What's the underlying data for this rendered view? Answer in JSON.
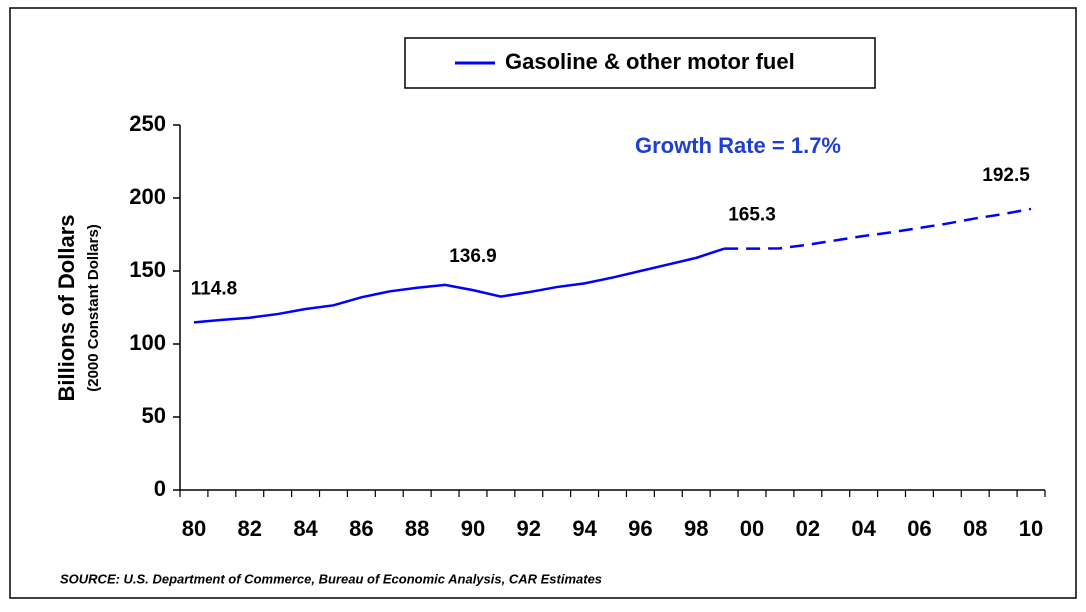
{
  "chart_data": {
    "type": "line",
    "ylabel": "Billions of Dollars",
    "ylabel_sub": "(2000 Constant Dollars)",
    "annotation": "Growth Rate = 1.7%",
    "source": "SOURCE:  U.S. Department of Commerce, Bureau of Economic Analysis, CAR Estimates",
    "categories": [
      "80",
      null,
      "82",
      null,
      "84",
      null,
      "86",
      null,
      "88",
      null,
      "90",
      null,
      "92",
      null,
      "94",
      null,
      "96",
      null,
      "98",
      null,
      "00",
      null,
      "02",
      null,
      "04",
      null,
      "06",
      null,
      "08",
      null,
      "10"
    ],
    "series": [
      {
        "name": "Gasoline & other motor fuel",
        "color": "#0000ff",
        "values": [
          114.8,
          116.5,
          118,
          120.5,
          124,
          126.5,
          132,
          136,
          138.5,
          140.5,
          136.9,
          132.5,
          135.5,
          139,
          141.5,
          145.5,
          150,
          154.5,
          159,
          165.3,
          165.3,
          165.5,
          168,
          171,
          174,
          176.5,
          179.5,
          182.5,
          186,
          189,
          192.5
        ],
        "value_labels": [
          "114.8",
          null,
          null,
          null,
          null,
          null,
          null,
          null,
          null,
          null,
          "136.9",
          null,
          null,
          null,
          null,
          null,
          null,
          null,
          null,
          null,
          "165.3",
          null,
          null,
          null,
          null,
          null,
          null,
          null,
          null,
          null,
          "192.5"
        ],
        "dashed_from_index": 19
      }
    ],
    "ylim": [
      0,
      250
    ],
    "yticks": [
      0,
      50,
      100,
      150,
      200,
      250
    ],
    "grid": false,
    "legend": "top"
  }
}
